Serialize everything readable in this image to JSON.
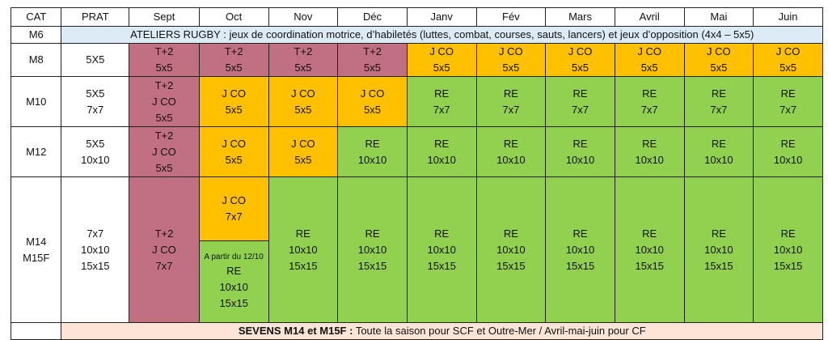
{
  "headers": [
    "CAT",
    "PRAT",
    "Sept",
    "Oct",
    "Nov",
    "Déc",
    "Janv",
    "Fév",
    "Mars",
    "Avril",
    "Mai",
    "Juin"
  ],
  "m6": {
    "cat": "M6",
    "text": "ATELIERS RUGBY : jeux de coordination motrice, d’habiletés (luttes, combat, courses, sauts, lancers) et jeux d’opposition (4x4 – 5x5)"
  },
  "m8": {
    "cat": "M8",
    "prat": "5X5",
    "cells": [
      {
        "l1": "T+2",
        "l2": "5x5"
      },
      {
        "l1": "T+2",
        "l2": "5x5"
      },
      {
        "l1": "T+2",
        "l2": "5x5"
      },
      {
        "l1": "T+2",
        "l2": "5x5"
      },
      {
        "l1": "J CO",
        "l2": "5x5"
      },
      {
        "l1": "J CO",
        "l2": "5x5"
      },
      {
        "l1": "J CO",
        "l2": "5x5"
      },
      {
        "l1": "J CO",
        "l2": "5x5"
      },
      {
        "l1": "J CO",
        "l2": "5x5"
      },
      {
        "l1": "J CO",
        "l2": "5x5"
      }
    ]
  },
  "m10": {
    "cat": "M10",
    "prat1": "5X5",
    "prat2": "7x7",
    "sept": {
      "l1": "T+2",
      "l2": "J CO",
      "l3": "5x5"
    },
    "cells": [
      {
        "l1": "J CO",
        "l2": "5x5"
      },
      {
        "l1": "J CO",
        "l2": "5x5"
      },
      {
        "l1": "J CO",
        "l2": "5x5"
      },
      {
        "l1": "RE",
        "l2": "7x7"
      },
      {
        "l1": "RE",
        "l2": "7x7"
      },
      {
        "l1": "RE",
        "l2": "7x7"
      },
      {
        "l1": "RE",
        "l2": "7x7"
      },
      {
        "l1": "RE",
        "l2": "7x7"
      },
      {
        "l1": "RE",
        "l2": "7x7"
      }
    ]
  },
  "m12": {
    "cat": "M12",
    "prat1": "5X5",
    "prat2": "10x10",
    "sept": {
      "l1": "T+2",
      "l2": "J CO",
      "l3": "5x5"
    },
    "cells": [
      {
        "l1": "J CO",
        "l2": "5x5"
      },
      {
        "l1": "J CO",
        "l2": "5x5"
      },
      {
        "l1": "RE",
        "l2": "10x10"
      },
      {
        "l1": "RE",
        "l2": "10x10"
      },
      {
        "l1": "RE",
        "l2": "10x10"
      },
      {
        "l1": "RE",
        "l2": "10x10"
      },
      {
        "l1": "RE",
        "l2": "10x10"
      },
      {
        "l1": "RE",
        "l2": "10x10"
      },
      {
        "l1": "RE",
        "l2": "10x10"
      }
    ]
  },
  "m14": {
    "cat1": "M14",
    "cat2": "M15F",
    "prat1": "7x7",
    "prat2": "10x10",
    "prat3": "15x15",
    "sept": {
      "l1": "T+2",
      "l2": "J CO",
      "l3": "7x7"
    },
    "oct_top": {
      "l1": "J CO",
      "l2": "7x7"
    },
    "oct_bottom": {
      "note": "A partir du 12/10",
      "l1": "RE",
      "l2": "10x10",
      "l3": "15x15"
    },
    "cells": [
      {
        "l1": "RE",
        "l2": "10x10",
        "l3": "15x15"
      },
      {
        "l1": "RE",
        "l2": "10x10",
        "l3": "15x15"
      },
      {
        "l1": "RE",
        "l2": "10x10",
        "l3": "15x15"
      },
      {
        "l1": "RE",
        "l2": "10x10",
        "l3": "15x15"
      },
      {
        "l1": "RE",
        "l2": "10x10",
        "l3": "15x15"
      },
      {
        "l1": "RE",
        "l2": "10x10",
        "l3": "15x15"
      },
      {
        "l1": "RE",
        "l2": "10x10",
        "l3": "15x15"
      },
      {
        "l1": "RE",
        "l2": "10x10",
        "l3": "15x15"
      }
    ]
  },
  "sevens": {
    "bold": "SEVENS M14 et M15F :",
    "text": " Toute la saison pour SCF et Outre-Mer / Avril-mai-juin pour CF"
  },
  "colors": {
    "t2": "#c07080",
    "jco": "#ffc000",
    "re": "#92d050",
    "m6band": "#ddebf7",
    "sevens": "#fce4d6"
  }
}
